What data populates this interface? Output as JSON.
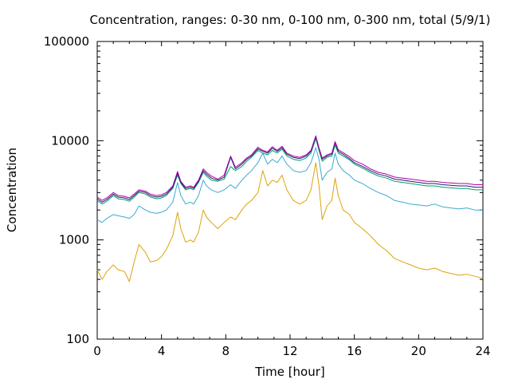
{
  "chart_data": {
    "type": "line",
    "title": "Concentration, ranges: 0-30 nm, 0-100 nm, 0-300 nm, total (5/9/1)",
    "xlabel": "Time [hour]",
    "ylabel": "Concentration",
    "xlim": [
      0,
      24
    ],
    "ylim": [
      100,
      100000
    ],
    "yscale": "log",
    "grid": false,
    "legend": "none",
    "x_ticks": [
      0,
      4,
      8,
      12,
      16,
      20,
      24
    ],
    "x_tick_labels": [
      "0",
      "4",
      "8",
      "12",
      "16",
      "20",
      "24"
    ],
    "y_ticks": [
      100,
      1000,
      10000,
      100000
    ],
    "y_tick_labels": [
      "100",
      "1000",
      "10000",
      "100000"
    ],
    "series": [
      {
        "color": "#dca30a",
        "x": [
          0,
          0.3,
          0.6,
          1.0,
          1.3,
          1.7,
          2.0,
          2.3,
          2.6,
          3.0,
          3.3,
          3.7,
          4.0,
          4.3,
          4.7,
          5.0,
          5.2,
          5.5,
          5.8,
          6.0,
          6.3,
          6.6,
          6.8,
          7.1,
          7.5,
          7.9,
          8.3,
          8.6,
          9.0,
          9.3,
          9.6,
          10.0,
          10.3,
          10.6,
          10.9,
          11.2,
          11.5,
          11.8,
          12.2,
          12.6,
          13.0,
          13.3,
          13.6,
          13.8,
          14.0,
          14.3,
          14.6,
          14.8,
          15.0,
          15.3,
          15.7,
          16.0,
          16.5,
          17.0,
          17.5,
          18.0,
          18.5,
          19.0,
          19.5,
          20.0,
          20.5,
          21.0,
          21.5,
          22.0,
          22.5,
          23.0,
          23.5,
          24.0
        ],
        "y": [
          500,
          400,
          480,
          560,
          500,
          480,
          380,
          600,
          900,
          750,
          600,
          620,
          680,
          800,
          1100,
          1900,
          1300,
          950,
          1000,
          950,
          1200,
          2000,
          1700,
          1500,
          1300,
          1500,
          1700,
          1600,
          2000,
          2300,
          2500,
          3000,
          5000,
          3500,
          4000,
          3800,
          4500,
          3200,
          2500,
          2300,
          2500,
          3200,
          6000,
          3500,
          1600,
          2200,
          2500,
          4200,
          2800,
          2000,
          1800,
          1500,
          1300,
          1100,
          900,
          780,
          650,
          600,
          560,
          520,
          500,
          520,
          480,
          460,
          440,
          450,
          430,
          410
        ]
      },
      {
        "color": "#3baad2",
        "x": [
          0,
          0.3,
          0.6,
          1.0,
          1.3,
          1.7,
          2.0,
          2.3,
          2.6,
          3.0,
          3.3,
          3.7,
          4.0,
          4.3,
          4.7,
          5.0,
          5.2,
          5.5,
          5.8,
          6.0,
          6.3,
          6.6,
          6.8,
          7.1,
          7.5,
          7.9,
          8.3,
          8.6,
          9.0,
          9.3,
          9.6,
          10.0,
          10.3,
          10.6,
          10.9,
          11.2,
          11.5,
          11.8,
          12.2,
          12.6,
          13.0,
          13.3,
          13.6,
          13.8,
          14.0,
          14.3,
          14.6,
          14.8,
          15.0,
          15.3,
          15.7,
          16.0,
          16.5,
          17.0,
          17.5,
          18.0,
          18.5,
          19.0,
          19.5,
          20.0,
          20.5,
          21.0,
          21.5,
          22.0,
          22.5,
          23.0,
          23.5,
          24.0
        ],
        "y": [
          1600,
          1500,
          1650,
          1800,
          1750,
          1700,
          1650,
          1800,
          2200,
          2000,
          1900,
          1850,
          1900,
          2000,
          2400,
          3800,
          2800,
          2300,
          2400,
          2300,
          2800,
          4000,
          3500,
          3200,
          3000,
          3200,
          3600,
          3300,
          4000,
          4500,
          5000,
          6000,
          7500,
          5800,
          6500,
          6000,
          7000,
          5800,
          5000,
          4800,
          5000,
          6000,
          8500,
          6500,
          4000,
          4800,
          5200,
          7500,
          5800,
          5000,
          4500,
          4000,
          3700,
          3300,
          3000,
          2800,
          2500,
          2400,
          2300,
          2250,
          2200,
          2300,
          2150,
          2100,
          2050,
          2100,
          2000,
          2000
        ]
      },
      {
        "color": "#009e73",
        "x": [
          0,
          0.3,
          0.6,
          1.0,
          1.3,
          1.7,
          2.0,
          2.3,
          2.6,
          3.0,
          3.3,
          3.7,
          4.0,
          4.3,
          4.7,
          5.0,
          5.2,
          5.5,
          5.8,
          6.0,
          6.3,
          6.6,
          6.8,
          7.1,
          7.5,
          7.9,
          8.3,
          8.6,
          9.0,
          9.3,
          9.6,
          10.0,
          10.3,
          10.6,
          10.9,
          11.2,
          11.5,
          11.8,
          12.2,
          12.6,
          13.0,
          13.3,
          13.6,
          13.8,
          14.0,
          14.3,
          14.6,
          14.8,
          15.0,
          15.3,
          15.7,
          16.0,
          16.5,
          17.0,
          17.5,
          18.0,
          18.5,
          19.0,
          19.5,
          20.0,
          20.5,
          21.0,
          21.5,
          22.0,
          22.5,
          23.0,
          23.5,
          24.0
        ],
        "y": [
          2500,
          2300,
          2450,
          2800,
          2600,
          2550,
          2450,
          2700,
          3000,
          2900,
          2700,
          2600,
          2650,
          2800,
          3300,
          4500,
          3700,
          3200,
          3300,
          3200,
          3800,
          4800,
          4400,
          4000,
          3900,
          4100,
          5500,
          5000,
          5500,
          6200,
          6800,
          8000,
          7500,
          7200,
          8000,
          7500,
          8200,
          7000,
          6500,
          6300,
          6700,
          7500,
          10500,
          8000,
          6200,
          6800,
          7000,
          9000,
          7500,
          7000,
          6400,
          5800,
          5300,
          4800,
          4400,
          4200,
          3900,
          3800,
          3700,
          3600,
          3500,
          3500,
          3400,
          3350,
          3300,
          3300,
          3200,
          3200
        ]
      },
      {
        "color": "#202060",
        "x": [
          0,
          0.3,
          0.6,
          1.0,
          1.3,
          1.7,
          2.0,
          2.3,
          2.6,
          3.0,
          3.3,
          3.7,
          4.0,
          4.3,
          4.7,
          5.0,
          5.2,
          5.5,
          5.8,
          6.0,
          6.3,
          6.6,
          6.8,
          7.1,
          7.5,
          7.9,
          8.3,
          8.6,
          9.0,
          9.3,
          9.6,
          10.0,
          10.3,
          10.6,
          10.9,
          11.2,
          11.5,
          11.8,
          12.2,
          12.6,
          13.0,
          13.3,
          13.6,
          13.8,
          14.0,
          14.3,
          14.6,
          14.8,
          15.0,
          15.3,
          15.7,
          16.0,
          16.5,
          17.0,
          17.5,
          18.0,
          18.5,
          19.0,
          19.5,
          20.0,
          20.5,
          21.0,
          21.5,
          22.0,
          22.5,
          23.0,
          23.5,
          24.0
        ],
        "y": [
          2600,
          2400,
          2550,
          2900,
          2700,
          2650,
          2550,
          2800,
          3100,
          3000,
          2800,
          2700,
          2750,
          2900,
          3400,
          4700,
          3800,
          3300,
          3400,
          3300,
          3900,
          5000,
          4600,
          4200,
          4000,
          4300,
          6800,
          5200,
          5800,
          6500,
          7000,
          8300,
          7800,
          7500,
          8400,
          7800,
          8500,
          7300,
          6800,
          6600,
          7000,
          7800,
          11000,
          8300,
          6500,
          7000,
          7300,
          9500,
          7800,
          7300,
          6600,
          6000,
          5500,
          5000,
          4600,
          4400,
          4100,
          4000,
          3900,
          3800,
          3700,
          3700,
          3600,
          3550,
          3500,
          3500,
          3400,
          3400
        ]
      },
      {
        "color": "#b000b0",
        "x": [
          0,
          0.3,
          0.6,
          1.0,
          1.3,
          1.7,
          2.0,
          2.3,
          2.6,
          3.0,
          3.3,
          3.7,
          4.0,
          4.3,
          4.7,
          5.0,
          5.2,
          5.5,
          5.8,
          6.0,
          6.3,
          6.6,
          6.8,
          7.1,
          7.5,
          7.9,
          8.3,
          8.6,
          9.0,
          9.3,
          9.6,
          10.0,
          10.3,
          10.6,
          10.9,
          11.2,
          11.5,
          11.8,
          12.2,
          12.6,
          13.0,
          13.3,
          13.6,
          13.8,
          14.0,
          14.3,
          14.6,
          14.8,
          15.0,
          15.3,
          15.7,
          16.0,
          16.5,
          17.0,
          17.5,
          18.0,
          18.5,
          19.0,
          19.5,
          20.0,
          20.5,
          21.0,
          21.5,
          22.0,
          22.5,
          23.0,
          23.5,
          24.0
        ],
        "y": [
          2700,
          2500,
          2650,
          3000,
          2800,
          2750,
          2650,
          2900,
          3200,
          3100,
          2900,
          2800,
          2850,
          3000,
          3500,
          4900,
          3900,
          3400,
          3500,
          3400,
          4000,
          5200,
          4800,
          4400,
          4100,
          4500,
          7000,
          5400,
          6000,
          6700,
          7200,
          8600,
          8000,
          7700,
          8700,
          8000,
          8800,
          7500,
          7000,
          6800,
          7200,
          8000,
          11200,
          8500,
          6700,
          7200,
          7500,
          9800,
          8100,
          7600,
          6900,
          6300,
          5800,
          5200,
          4800,
          4600,
          4300,
          4200,
          4100,
          4000,
          3900,
          3900,
          3800,
          3750,
          3700,
          3700,
          3600,
          3600
        ]
      }
    ]
  }
}
